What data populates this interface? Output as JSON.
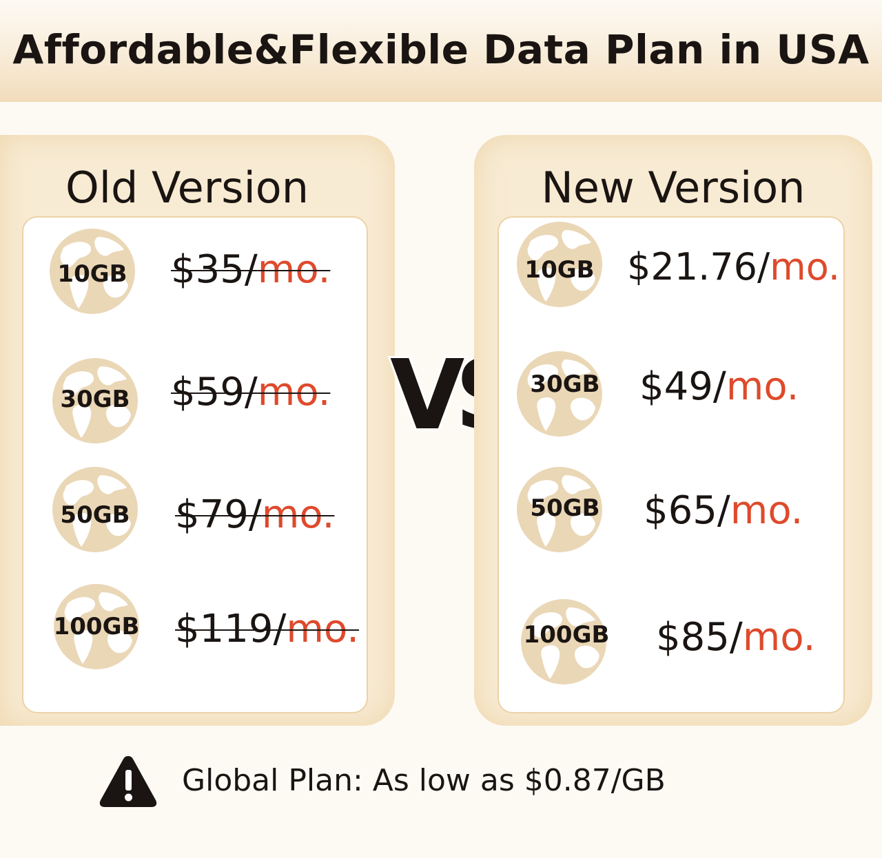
{
  "banner": {
    "title": "Affordable&Flexible Data Plan in USA"
  },
  "old_version": {
    "title": "Old Version",
    "plans": [
      {
        "data": "10GB",
        "price": "$35/",
        "unit": "mo."
      },
      {
        "data": "30GB",
        "price": "$59/",
        "unit": "mo."
      },
      {
        "data": "50GB",
        "price": "$79/",
        "unit": "mo."
      },
      {
        "data": "100GB",
        "price": "$119/",
        "unit": "mo."
      }
    ]
  },
  "new_version": {
    "title": "New Version",
    "plans": [
      {
        "data": "10GB",
        "price": "$21.76/",
        "unit": "mo."
      },
      {
        "data": "30GB",
        "price": "$49/",
        "unit": "mo."
      },
      {
        "data": "50GB",
        "price": "$65/",
        "unit": "mo."
      },
      {
        "data": "100GB",
        "price": "$85/",
        "unit": "mo."
      }
    ]
  },
  "vs_label": "VS",
  "footer": {
    "text": "Global Plan: As low as $0.87/GB",
    "icon": "warning-icon"
  },
  "colors": {
    "accent": "#de4a2c",
    "panel": "#f8ebd3",
    "text": "#1a1512"
  }
}
